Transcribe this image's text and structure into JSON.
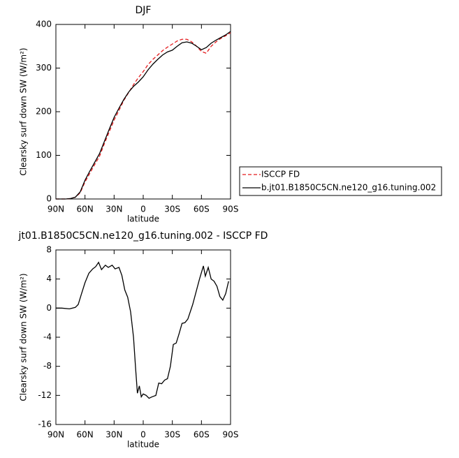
{
  "chart_data": [
    {
      "type": "line",
      "title": "DJF",
      "xlabel": "latitude",
      "ylabel": "Clearsky surf down SW (W/m²)",
      "x": [
        90,
        85,
        80,
        75,
        70,
        65,
        60,
        55,
        50,
        45,
        40,
        35,
        30,
        25,
        20,
        15,
        10,
        5,
        0,
        -5,
        -10,
        -15,
        -20,
        -25,
        -30,
        -35,
        -40,
        -45,
        -50,
        -55,
        -60,
        -65,
        -70,
        -75,
        -80,
        -85,
        -90
      ],
      "series": [
        {
          "name": "ISCCP FD",
          "color": "#e41a1c",
          "linestyle": "dashed",
          "values": [
            0,
            0,
            0,
            1,
            4,
            14,
            39,
            59,
            79,
            98,
            127,
            154,
            181,
            203,
            226,
            244,
            262,
            278,
            292,
            308,
            320,
            330,
            340,
            348,
            355,
            362,
            366,
            366,
            360,
            350,
            338,
            334,
            350,
            360,
            368,
            374,
            381
          ]
        },
        {
          "name": "b.jt01.B1850C5CN.ne120_g16.tuning.002",
          "color": "#000000",
          "linestyle": "solid",
          "values": [
            0,
            0,
            0,
            1,
            4,
            16,
            43,
            64,
            84,
            104,
            132,
            160,
            187,
            208,
            228,
            245,
            258,
            268,
            280,
            296,
            309,
            320,
            330,
            337,
            341,
            350,
            358,
            360,
            357,
            350,
            342,
            347,
            357,
            364,
            370,
            376,
            384
          ]
        }
      ],
      "xlim": [
        90,
        -90
      ],
      "xticks": [
        {
          "value": 90,
          "label": "90N"
        },
        {
          "value": 60,
          "label": "60N"
        },
        {
          "value": 30,
          "label": "30N"
        },
        0,
        {
          "value": -30,
          "label": "30S"
        },
        {
          "value": -60,
          "label": "60S"
        },
        {
          "value": -90,
          "label": "90S"
        }
      ],
      "ylim": [
        0,
        400
      ],
      "yticks": [
        0,
        100,
        200,
        300,
        400
      ],
      "legend": "right outside"
    },
    {
      "type": "line",
      "title": "jt01.B1850C5CN.ne120_g16.tuning.002 - ISCCP FD",
      "xlabel": "latitude",
      "ylabel": "Clearsky surf down SW (W/m²)",
      "x": [
        90,
        84,
        76,
        70,
        67,
        64,
        60,
        56,
        52,
        49,
        46,
        43,
        39,
        36,
        32,
        29,
        25,
        22,
        19,
        16,
        13,
        10,
        8,
        6,
        4,
        2,
        0,
        -3,
        -6,
        -9,
        -13,
        -16,
        -19,
        -22,
        -25,
        -28,
        -31,
        -34,
        -37,
        -40,
        -43,
        -46,
        -51,
        -55,
        -58,
        -62,
        -64,
        -67,
        -70,
        -73,
        -76,
        -79,
        -82,
        -85,
        -88
      ],
      "series": [
        {
          "color": "#000000",
          "linestyle": "solid",
          "values": [
            0,
            0,
            -0.1,
            0.1,
            0.5,
            1.8,
            3.5,
            4.8,
            5.4,
            5.7,
            6.3,
            5.3,
            5.9,
            5.6,
            5.9,
            5.4,
            5.6,
            4.5,
            2.5,
            1.5,
            -0.5,
            -4,
            -8,
            -11.7,
            -10.7,
            -12.2,
            -11.8,
            -12,
            -12.4,
            -12.2,
            -12,
            -10.3,
            -10.4,
            -9.9,
            -9.7,
            -8,
            -5,
            -4.8,
            -3.5,
            -2.1,
            -2,
            -1.5,
            0.5,
            2.5,
            4,
            5.8,
            4.4,
            5.6,
            4,
            3.7,
            3,
            1.6,
            1.1,
            2,
            3.7
          ]
        }
      ],
      "xlim": [
        90,
        -90
      ],
      "xticks": [
        {
          "value": 90,
          "label": "90N"
        },
        {
          "value": 60,
          "label": "60N"
        },
        {
          "value": 30,
          "label": "30N"
        },
        0,
        {
          "value": -30,
          "label": "30S"
        },
        {
          "value": -60,
          "label": "60S"
        },
        {
          "value": -90,
          "label": "90S"
        }
      ],
      "ylim": [
        -16,
        8
      ],
      "yticks": [
        -16,
        -12,
        -8,
        -4,
        0,
        4,
        8
      ]
    }
  ]
}
